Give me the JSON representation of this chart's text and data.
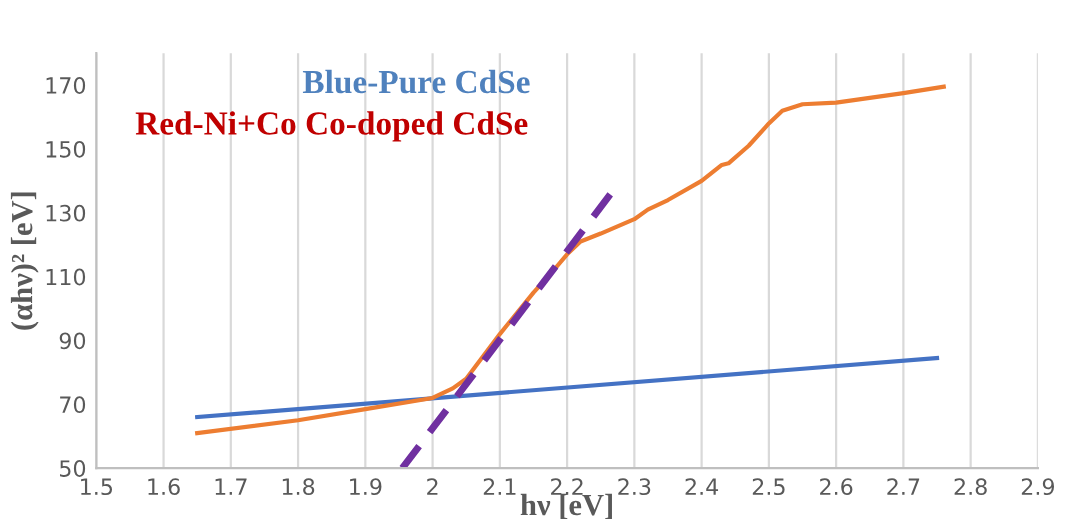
{
  "chart_data": {
    "type": "line",
    "xlabel": "hν [eV]",
    "ylabel": "(αhν)² [eV]",
    "annotations": [
      "Blue-Pure CdSe",
      "Red-Ni+Co Co-doped CdSe"
    ],
    "xlim": [
      1.5,
      2.9
    ],
    "ylim": [
      50,
      180
    ],
    "xticks": [
      1.5,
      1.6,
      1.7,
      1.8,
      1.9,
      2,
      2.1,
      2.2,
      2.3,
      2.4,
      2.5,
      2.6,
      2.7,
      2.8,
      2.9
    ],
    "yticks": [
      50,
      70,
      90,
      110,
      130,
      150,
      170
    ],
    "grid": "x",
    "marker": "none",
    "series": [
      {
        "color": "#4472c4",
        "line_style": "solid",
        "x": [
          1.65,
          2.75
        ],
        "values": [
          66,
          84.5
        ]
      },
      {
        "color": "#ed7d31",
        "line_style": "solid",
        "x": [
          1.65,
          1.8,
          1.9,
          2.0,
          2.03,
          2.05,
          2.1,
          2.15,
          2.18,
          2.2,
          2.22,
          2.25,
          2.3,
          2.32,
          2.35,
          2.4,
          2.43,
          2.44,
          2.47,
          2.5,
          2.52,
          2.55,
          2.6,
          2.7,
          2.76
        ],
        "values": [
          61,
          65,
          68.5,
          72,
          75,
          78,
          92,
          105,
          112,
          117,
          121,
          123.5,
          128,
          131,
          134,
          140,
          145,
          145.5,
          151,
          158,
          162,
          164,
          164.5,
          167.5,
          169.5
        ]
      },
      {
        "color": "#7030a0",
        "line_style": "dashed",
        "x": [
          1.955,
          2.265
        ],
        "values": [
          50,
          136
        ]
      }
    ]
  }
}
